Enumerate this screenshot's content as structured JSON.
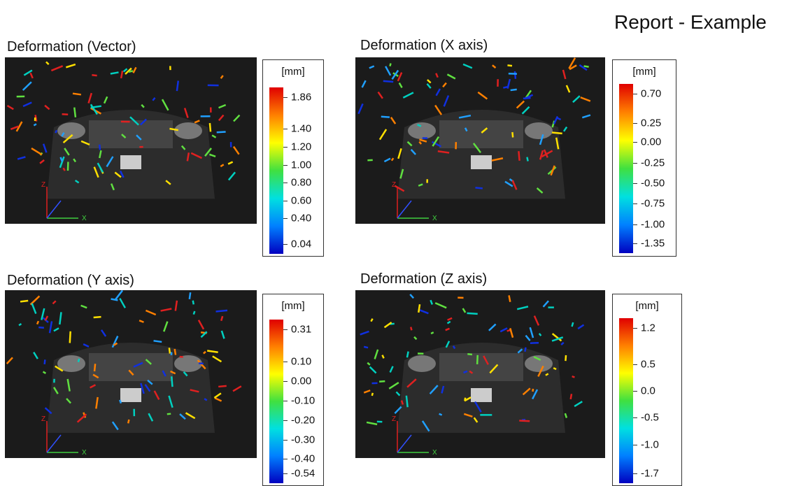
{
  "header": {
    "title": "Report - Example"
  },
  "panels": [
    {
      "title": "Deformation (Vector)",
      "unit": "[mm]",
      "ticks": [
        "1.86",
        "1.40",
        "1.20",
        "1.00",
        "0.80",
        "0.60",
        "0.40",
        "0.04"
      ],
      "triad": [
        "Z",
        "X"
      ]
    },
    {
      "title": "Deformation (X axis)",
      "unit": "[mm]",
      "ticks": [
        "0.70",
        "0.25",
        "0.00",
        "-0.25",
        "-0.50",
        "-0.75",
        "-1.00",
        "-1.35"
      ],
      "triad": [
        "Z",
        "X"
      ]
    },
    {
      "title": "Deformation (Y axis)",
      "unit": "[mm]",
      "ticks": [
        "0.31",
        "0.10",
        "0.00",
        "-0.10",
        "-0.20",
        "-0.30",
        "-0.40",
        "-0.54"
      ],
      "triad": [
        "Z",
        "X"
      ]
    },
    {
      "title": "Deformation (Z axis)",
      "unit": "[mm]",
      "ticks": [
        "1.2",
        "0.5",
        "0.0",
        "-0.5",
        "-1.0",
        "-1.7"
      ],
      "triad": [
        "Z",
        "X"
      ]
    }
  ]
}
